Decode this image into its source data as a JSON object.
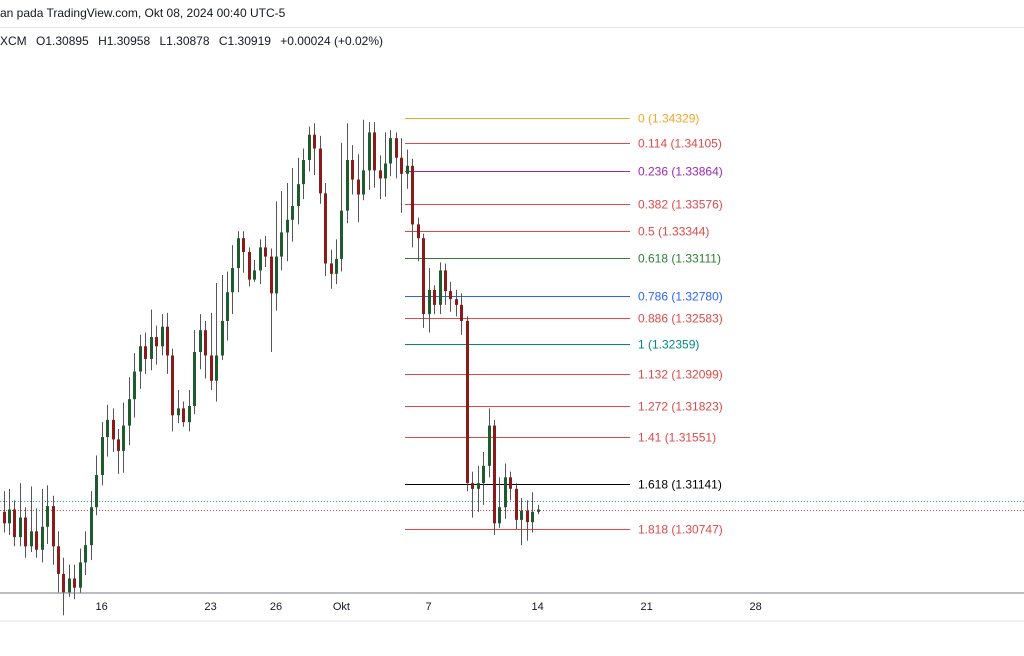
{
  "header": {
    "title": "an pada TradingView.com, Okt 08, 2024 00:40 UTC-5"
  },
  "ohlc": {
    "symbol": "XCM",
    "open": "O1.30895",
    "high": "H1.30958",
    "low": "L1.30878",
    "close": "C1.30919",
    "change": "+0.00024 (+0.02%)"
  },
  "colors": {
    "up": "#1e5c2e",
    "down": "#8b1a1a",
    "wick": "#555555",
    "axis": "#787b86"
  },
  "chart_data": {
    "type": "candlestick",
    "ylim": [
      1.3022,
      1.3483
    ],
    "x_ticks": [
      {
        "label": "16",
        "index": 18
      },
      {
        "label": "23",
        "index": 38
      },
      {
        "label": "26",
        "index": 50
      },
      {
        "label": "Okt",
        "index": 62
      },
      {
        "label": "7",
        "index": 78
      },
      {
        "label": "14",
        "index": 98
      },
      {
        "label": "21",
        "index": 118
      },
      {
        "label": "28",
        "index": 138
      }
    ],
    "fib_levels": [
      {
        "label": "0 (1.34329)",
        "value": 1.34329,
        "color": "#f5a623"
      },
      {
        "label": "0.114 (1.34105)",
        "value": 1.34105,
        "color": "#e04848"
      },
      {
        "label": "0.236 (1.33864)",
        "value": 1.33864,
        "color": "#9c27b0"
      },
      {
        "label": "0.382 (1.33576)",
        "value": 1.33576,
        "color": "#e04848"
      },
      {
        "label": "0.5 (1.33344)",
        "value": 1.33344,
        "color": "#e04848"
      },
      {
        "label": "0.618 (1.33111)",
        "value": 1.33111,
        "color": "#2e7d32"
      },
      {
        "label": "0.786 (1.32780)",
        "value": 1.3278,
        "color": "#2962ff"
      },
      {
        "label": "0.886 (1.32583)",
        "value": 1.32583,
        "color": "#e04848"
      },
      {
        "label": "1 (1.32359)",
        "value": 1.32359,
        "color": "#00897b"
      },
      {
        "label": "1.132 (1.32099)",
        "value": 1.32099,
        "color": "#e04848"
      },
      {
        "label": "1.272 (1.31823)",
        "value": 1.31823,
        "color": "#e04848"
      },
      {
        "label": "1.41 (1.31551)",
        "value": 1.31551,
        "color": "#e04848"
      },
      {
        "label": "1.618 (1.31141)",
        "value": 1.31141,
        "color": "#000000"
      },
      {
        "label": "1.818 (1.30747)",
        "value": 1.30747,
        "color": "#e04848"
      }
    ],
    "last_price": 1.30919,
    "candles": [
      [
        1.309,
        1.308,
        1.3108,
        1.3072
      ],
      [
        1.308,
        1.3092,
        1.311,
        1.307
      ],
      [
        1.3092,
        1.3068,
        1.31,
        1.306
      ],
      [
        1.3068,
        1.3085,
        1.3115,
        1.306
      ],
      [
        1.3085,
        1.306,
        1.3094,
        1.305
      ],
      [
        1.306,
        1.3073,
        1.3112,
        1.3055
      ],
      [
        1.3073,
        1.3057,
        1.3093,
        1.305
      ],
      [
        1.3057,
        1.3077,
        1.311,
        1.3046
      ],
      [
        1.3077,
        1.3095,
        1.3113,
        1.3062
      ],
      [
        1.3095,
        1.306,
        1.3104,
        1.3044
      ],
      [
        1.306,
        1.3036,
        1.3073,
        1.302
      ],
      [
        1.3036,
        1.302,
        1.305,
        1.3
      ],
      [
        1.302,
        1.3032,
        1.3044,
        1.3016
      ],
      [
        1.3032,
        1.3024,
        1.3044,
        1.3014
      ],
      [
        1.3024,
        1.3046,
        1.3058,
        1.3019
      ],
      [
        1.3046,
        1.3061,
        1.3073,
        1.3035
      ],
      [
        1.3061,
        1.3094,
        1.3108,
        1.3048
      ],
      [
        1.3094,
        1.3122,
        1.3139,
        1.3087
      ],
      [
        1.3122,
        1.3155,
        1.3168,
        1.3113
      ],
      [
        1.3155,
        1.317,
        1.3183,
        1.3138
      ],
      [
        1.317,
        1.3153,
        1.318,
        1.3142
      ],
      [
        1.3153,
        1.3143,
        1.3162,
        1.3123
      ],
      [
        1.3143,
        1.3165,
        1.3185,
        1.3124
      ],
      [
        1.3165,
        1.3188,
        1.3207,
        1.3148
      ],
      [
        1.3188,
        1.3212,
        1.3228,
        1.3172
      ],
      [
        1.3212,
        1.3234,
        1.3244,
        1.3197
      ],
      [
        1.3234,
        1.3223,
        1.3246,
        1.321
      ],
      [
        1.3223,
        1.3242,
        1.3266,
        1.3213
      ],
      [
        1.3242,
        1.3234,
        1.3252,
        1.3218
      ],
      [
        1.3234,
        1.3251,
        1.3262,
        1.3226
      ],
      [
        1.3251,
        1.3226,
        1.3263,
        1.321
      ],
      [
        1.3226,
        1.3174,
        1.3232,
        1.316
      ],
      [
        1.3174,
        1.318,
        1.3196,
        1.3167
      ],
      [
        1.318,
        1.3168,
        1.3186,
        1.3164
      ],
      [
        1.3168,
        1.3182,
        1.3196,
        1.316
      ],
      [
        1.3182,
        1.3229,
        1.3248,
        1.3175
      ],
      [
        1.3229,
        1.3248,
        1.3262,
        1.3214
      ],
      [
        1.3248,
        1.3226,
        1.3256,
        1.3206
      ],
      [
        1.3226,
        1.3204,
        1.3263,
        1.3196
      ],
      [
        1.3204,
        1.3226,
        1.3289,
        1.3186
      ],
      [
        1.3226,
        1.3256,
        1.3296,
        1.3222
      ],
      [
        1.3256,
        1.3281,
        1.3299,
        1.3239
      ],
      [
        1.3281,
        1.3302,
        1.3322,
        1.3262
      ],
      [
        1.3302,
        1.3328,
        1.3334,
        1.3281
      ],
      [
        1.3328,
        1.3316,
        1.3334,
        1.3298
      ],
      [
        1.3316,
        1.3292,
        1.332,
        1.3286
      ],
      [
        1.3292,
        1.33,
        1.3309,
        1.329
      ],
      [
        1.33,
        1.332,
        1.3327,
        1.3288
      ],
      [
        1.332,
        1.3312,
        1.333,
        1.3303
      ],
      [
        1.3312,
        1.328,
        1.3319,
        1.3229
      ],
      [
        1.328,
        1.3312,
        1.336,
        1.3265
      ],
      [
        1.3312,
        1.3333,
        1.3369,
        1.33
      ],
      [
        1.3333,
        1.3344,
        1.3376,
        1.3308
      ],
      [
        1.3344,
        1.3356,
        1.3389,
        1.3325
      ],
      [
        1.3356,
        1.3375,
        1.3398,
        1.334
      ],
      [
        1.3375,
        1.3396,
        1.3406,
        1.3362
      ],
      [
        1.3396,
        1.3418,
        1.3425,
        1.3386
      ],
      [
        1.3418,
        1.3406,
        1.3428,
        1.3383
      ],
      [
        1.3406,
        1.3367,
        1.3417,
        1.3358
      ],
      [
        1.3367,
        1.3306,
        1.3376,
        1.3295
      ],
      [
        1.3306,
        1.3297,
        1.3318,
        1.3284
      ],
      [
        1.3297,
        1.331,
        1.3327,
        1.3288
      ],
      [
        1.331,
        1.3352,
        1.3411,
        1.3299
      ],
      [
        1.3352,
        1.3396,
        1.3428,
        1.3341
      ],
      [
        1.3396,
        1.3379,
        1.3409,
        1.3366
      ],
      [
        1.3379,
        1.3366,
        1.3401,
        1.3342
      ],
      [
        1.3366,
        1.3387,
        1.3431,
        1.3361
      ],
      [
        1.3387,
        1.342,
        1.3429,
        1.337
      ],
      [
        1.342,
        1.3387,
        1.3429,
        1.3372
      ],
      [
        1.3387,
        1.338,
        1.34,
        1.3362
      ],
      [
        1.338,
        1.3393,
        1.342,
        1.3364
      ],
      [
        1.3393,
        1.3415,
        1.3422,
        1.3382
      ],
      [
        1.3415,
        1.3398,
        1.342,
        1.338
      ],
      [
        1.3398,
        1.3384,
        1.3415,
        1.335
      ],
      [
        1.3384,
        1.3391,
        1.3405,
        1.3371
      ],
      [
        1.3391,
        1.334,
        1.3397,
        1.332
      ],
      [
        1.334,
        1.3328,
        1.3346,
        1.3308
      ],
      [
        1.3328,
        1.3262,
        1.3332,
        1.325
      ],
      [
        1.3262,
        1.3283,
        1.3302,
        1.3246
      ],
      [
        1.3283,
        1.327,
        1.3287,
        1.3262
      ],
      [
        1.327,
        1.33,
        1.3307,
        1.3262
      ],
      [
        1.33,
        1.3282,
        1.3306,
        1.327
      ],
      [
        1.3282,
        1.3275,
        1.329,
        1.3264
      ],
      [
        1.3275,
        1.327,
        1.3283,
        1.326
      ],
      [
        1.327,
        1.3256,
        1.328,
        1.3244
      ],
      [
        1.3256,
        1.3115,
        1.326,
        1.3108
      ],
      [
        1.3115,
        1.311,
        1.3125,
        1.3085
      ],
      [
        1.311,
        1.3115,
        1.313,
        1.309
      ],
      [
        1.3115,
        1.313,
        1.3142,
        1.3096
      ],
      [
        1.313,
        1.3165,
        1.318,
        1.312
      ],
      [
        1.3165,
        1.308,
        1.317,
        1.307
      ],
      [
        1.308,
        1.3094,
        1.312,
        1.3076
      ],
      [
        1.3094,
        1.312,
        1.3132,
        1.3084
      ],
      [
        1.312,
        1.311,
        1.3125,
        1.31
      ],
      [
        1.311,
        1.3083,
        1.3115,
        1.3075
      ],
      [
        1.3083,
        1.3091,
        1.3102,
        1.3061
      ],
      [
        1.3091,
        1.3081,
        1.31,
        1.3065
      ],
      [
        1.3081,
        1.309,
        1.3107,
        1.3072
      ],
      [
        1.309,
        1.3092,
        1.3096,
        1.3088
      ]
    ]
  }
}
